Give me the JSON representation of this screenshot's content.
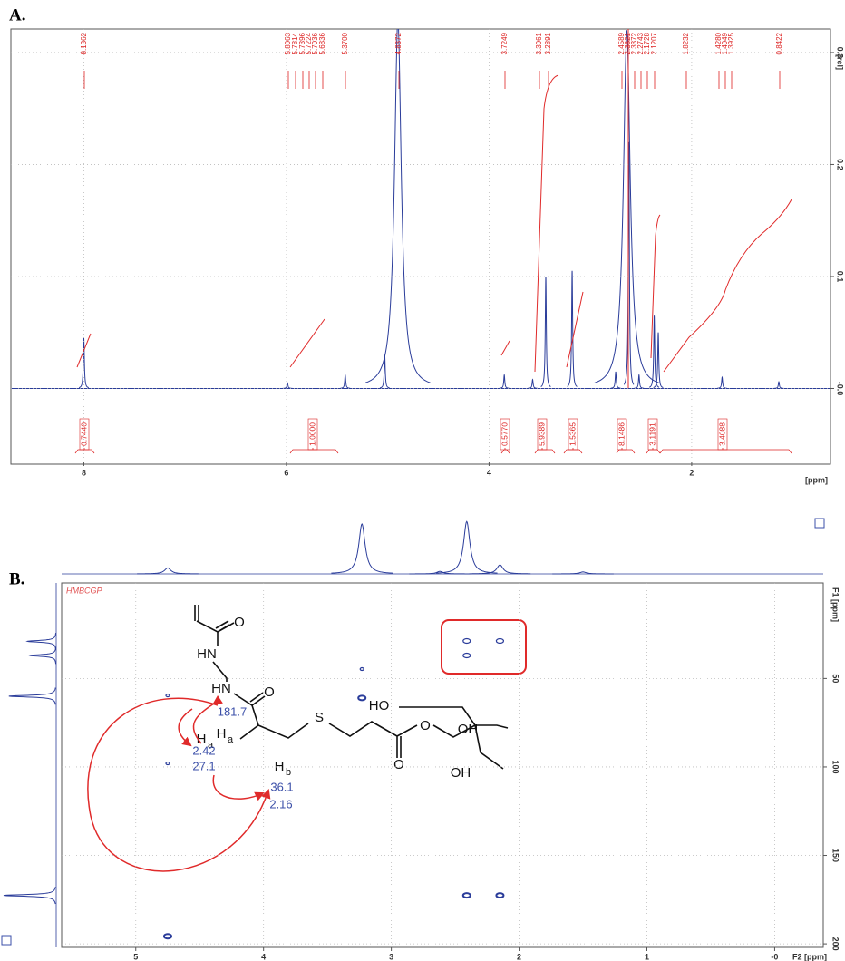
{
  "panel_a": {
    "label": "A.",
    "xlabel": "[ppm]",
    "ylabel": "[rel]",
    "xlim": [
      8.72,
      0.63
    ],
    "ylim": [
      -0.066,
      0.321
    ],
    "xticks": [
      8,
      6,
      4,
      2
    ],
    "yticks": [
      0.3,
      0.2,
      0.1,
      {
        "value": 0,
        "label": "-0.0"
      }
    ],
    "grid": true,
    "color": "#2a3c9a",
    "peak_labels": [
      "8.1362",
      "5.8063",
      "5.7814",
      "5.7396",
      "5.7224",
      "5.7036",
      "5.6836",
      "5.3700",
      "4.8372",
      "3.7249",
      "3.3061",
      "3.2891",
      "2.4589",
      "2.3821",
      "2.3372",
      "2.2743",
      "2.1728",
      "2.1207",
      "1.8232",
      "1.4280",
      "1.4049",
      "1.3925",
      "0.8422"
    ],
    "integral_labels": [
      "0.7440",
      "1.0000",
      "0.5770",
      "5.9389",
      "1.5365",
      "8.1486",
      "3.1191",
      "3.4088"
    ],
    "signal_shifts": [
      8.0,
      5.99,
      5.42,
      5.03,
      4.9,
      3.85,
      3.57,
      3.44,
      3.18,
      2.75,
      2.64,
      2.62,
      2.52,
      2.37,
      2.33,
      1.7,
      1.14
    ],
    "signal_heights": [
      0.045,
      0.005,
      0.012,
      0.03,
      0.33,
      0.012,
      0.008,
      0.1,
      0.105,
      0.015,
      0.32,
      0.22,
      0.012,
      0.065,
      0.05,
      0.01,
      0.006
    ]
  },
  "panel_b": {
    "label": "B.",
    "experiment": "HMBCGP",
    "f2_label": "F2 [ppm]",
    "f1_label": "F1 [ppm]",
    "f2lim": [
      5.58,
      -0.38
    ],
    "f1lim": [
      -4,
      202
    ],
    "f2_ticks": [
      5,
      4,
      3,
      2,
      1,
      {
        "value": 0,
        "label": "-0"
      }
    ],
    "f1_ticks": [
      50,
      100,
      150,
      200
    ],
    "color": "#2a3c9a",
    "cross_peaks_f2": [
      2.41,
      2.15,
      2.41,
      3.23,
      3.23,
      4.75,
      4.75,
      2.41,
      2.15,
      4.75
    ],
    "cross_peaks_f1": [
      28.8,
      28.8,
      37,
      44.7,
      61,
      59.6,
      98,
      172.6,
      172.6,
      195.7
    ],
    "top_shifts": [
      4.75,
      3.23,
      2.62,
      2.41,
      2.15,
      1.5
    ],
    "top_heights": [
      0.12,
      1.0,
      0.05,
      1.05,
      0.18,
      0.04
    ],
    "left_shifts": [
      29,
      37,
      60,
      172.6
    ],
    "left_heights": [
      0.55,
      0.5,
      0.9,
      1.0
    ],
    "annotations": [
      "181.7",
      "2.42",
      "27.1",
      "36.1",
      "2.16"
    ],
    "atoms": [
      "O",
      "HN",
      "HN",
      "O",
      "S",
      "O",
      "O",
      "HO",
      "OH",
      "OH"
    ],
    "h_labels": [
      "H",
      "a",
      "H",
      "a",
      "H",
      "b"
    ]
  }
}
